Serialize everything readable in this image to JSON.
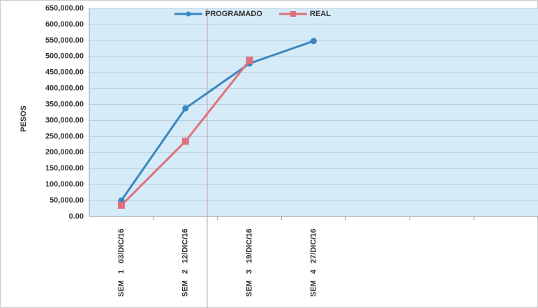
{
  "chart_data": {
    "type": "line",
    "y_label": "PESOS",
    "categories": [
      "SEM 1 03/DIC/16",
      "SEM 2 12/DIC/16",
      "SEM 3 19/DIC/16",
      "SEM 4 27/DIC/16",
      null,
      null,
      null
    ],
    "series": [
      {
        "name": "PROGRAMADO",
        "color": "#3a86c0",
        "marker": "circle",
        "values": [
          50000,
          338000,
          478000,
          548000,
          null,
          null,
          null
        ]
      },
      {
        "name": "REAL",
        "color": "#e0707c",
        "marker": "square",
        "values": [
          35000,
          235000,
          488000,
          null,
          null,
          null,
          null
        ]
      }
    ],
    "ylim": [
      0,
      650000
    ],
    "yticks": [
      {
        "value": 0,
        "label": "0.00"
      },
      {
        "value": 50000,
        "label": "50,000.00"
      },
      {
        "value": 100000,
        "label": "100,000.00"
      },
      {
        "value": 150000,
        "label": "150,000.00"
      },
      {
        "value": 200000,
        "label": "200,000.00"
      },
      {
        "value": 250000,
        "label": "250,000.00"
      },
      {
        "value": 300000,
        "label": "300,000.00"
      },
      {
        "value": 350000,
        "label": "350,000.00"
      },
      {
        "value": 400000,
        "label": "400,000.00"
      },
      {
        "value": 450000,
        "label": "450,000.00"
      },
      {
        "value": 500000,
        "label": "500,000.00"
      },
      {
        "value": 550000,
        "label": "550,000.00"
      },
      {
        "value": 600000,
        "label": "600,000.00"
      },
      {
        "value": 650000,
        "label": "650,000.00"
      }
    ],
    "grid": true,
    "legend": "top"
  }
}
